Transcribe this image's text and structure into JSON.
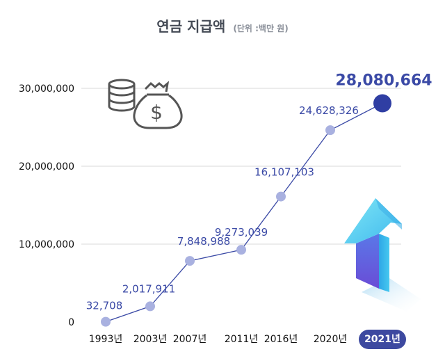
{
  "chart_data": {
    "type": "line",
    "title": "연금 지급액",
    "subtitle": "(단위 :백만 원)",
    "categories": [
      "1993년",
      "2003년",
      "2007년",
      "2011년",
      "2016년",
      "2020년",
      "2021년"
    ],
    "values": [
      32708,
      2017911,
      7848988,
      9273039,
      16107103,
      24628326,
      28080664
    ],
    "value_labels": [
      "32,708",
      "2,017,911",
      "7,848,988",
      "9,273,039",
      "16,107,103",
      "24,628,326",
      "28,080,664"
    ],
    "y_ticks": [
      0,
      10000000,
      20000000,
      30000000
    ],
    "y_tick_labels": [
      "0",
      "10,000,000",
      "20,000,000",
      "30,000,000"
    ],
    "ylim": [
      0,
      30000000
    ],
    "grid": true,
    "highlight_category": "2021년",
    "colors": {
      "line": "#3b4aa6",
      "point": "#a9b1e0",
      "highlight_point": "#2f3ea3",
      "label": "#3b4aa6",
      "highlight_pill": "#3d49a0",
      "grid": "#d9d9d9",
      "axis_text": "#111111"
    },
    "icons": [
      "coins-icon",
      "money-bag-icon",
      "up-arrow-icon"
    ]
  }
}
